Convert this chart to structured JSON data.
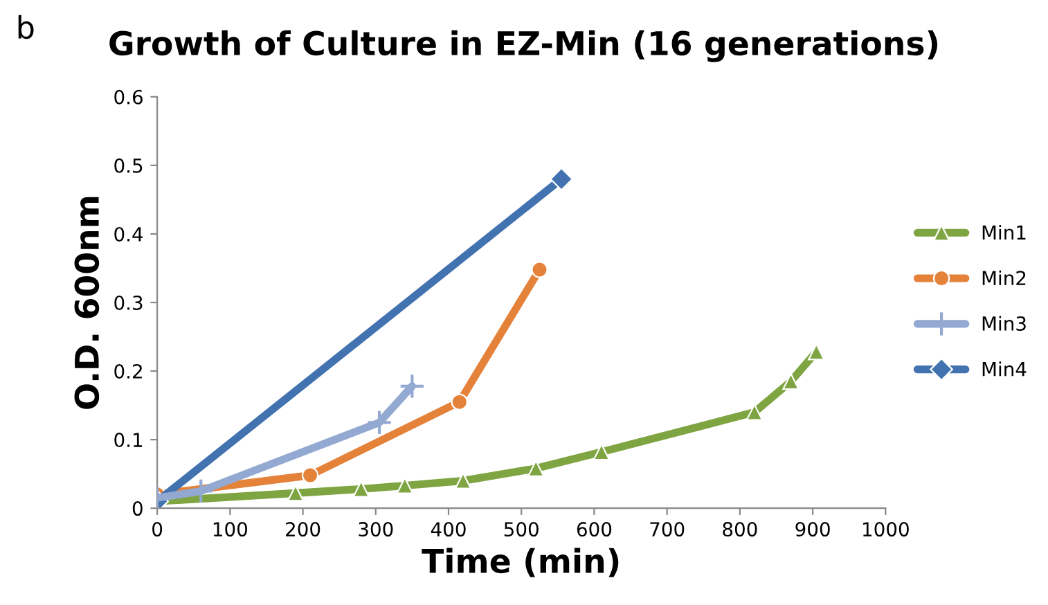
{
  "chart_data": {
    "type": "line",
    "title": "Growth of Culture in EZ-Min (16 generations)",
    "xlabel": "Time (min)",
    "ylabel": "O.D. 600nm",
    "annotations": [
      "b"
    ],
    "xlim": [
      0,
      1000
    ],
    "xticks": [
      0,
      100,
      200,
      300,
      400,
      500,
      600,
      700,
      800,
      900,
      1000
    ],
    "ylim": [
      0,
      0.6
    ],
    "yticks": [
      0,
      0.1,
      0.2,
      0.3,
      0.4,
      0.5,
      0.6
    ],
    "grid": false,
    "legend": "right",
    "line_style": "solid",
    "series": [
      {
        "name": "Min1",
        "color": "#7ea541",
        "marker": "triangle",
        "x": [
          0,
          190,
          280,
          340,
          420,
          520,
          610,
          820,
          870,
          905
        ],
        "values": [
          0.01,
          0.022,
          0.028,
          0.033,
          0.04,
          0.058,
          0.082,
          0.14,
          0.185,
          0.228
        ]
      },
      {
        "name": "Min2",
        "color": "#e5823a",
        "marker": "circle",
        "x": [
          0,
          210,
          415,
          525
        ],
        "values": [
          0.02,
          0.048,
          0.155,
          0.348
        ]
      },
      {
        "name": "Min3",
        "color": "#93a9d2",
        "marker": "cross",
        "x": [
          0,
          60,
          305,
          350
        ],
        "values": [
          0.015,
          0.025,
          0.125,
          0.178
        ]
      },
      {
        "name": "Min4",
        "color": "#4272b0",
        "marker": "diamond",
        "x": [
          0,
          555
        ],
        "values": [
          0.01,
          0.48
        ]
      }
    ]
  }
}
